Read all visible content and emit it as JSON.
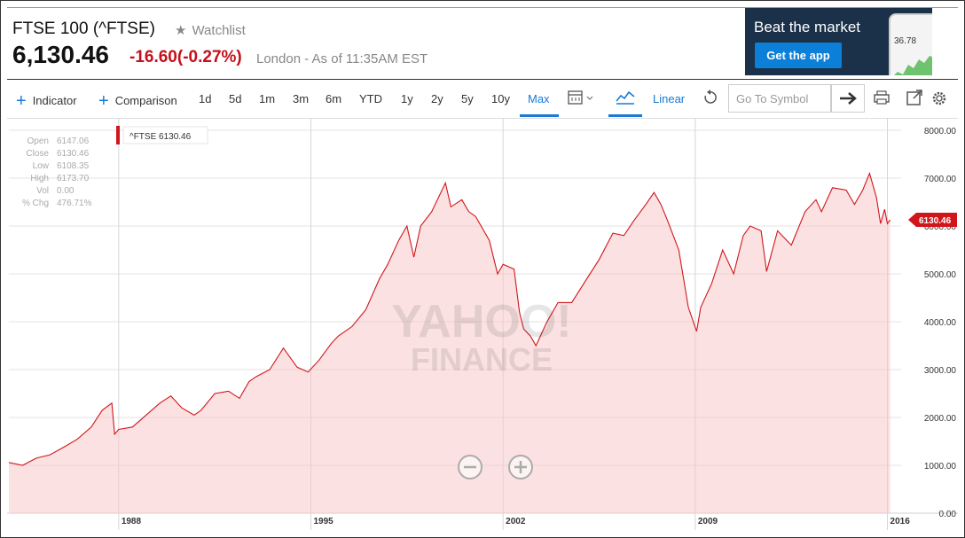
{
  "header": {
    "title": "FTSE 100 (^FTSE)",
    "watchlist_label": "Watchlist",
    "price": "6,130.46",
    "change": "-16.60",
    "change_pct": "(-0.27%)",
    "as_of": "London - As of 11:35AM EST"
  },
  "ad": {
    "title": "Beat the market",
    "button": "Get the app",
    "phone_value": "36.78"
  },
  "toolbar": {
    "indicator": "Indicator",
    "comparison": "Comparison",
    "ranges": [
      "1d",
      "5d",
      "1m",
      "3m",
      "6m",
      "YTD",
      "1y",
      "2y",
      "5y",
      "10y",
      "Max"
    ],
    "active_range": "Max",
    "scale": "Linear",
    "search_placeholder": "Go To Symbol"
  },
  "chart_data": {
    "type": "area",
    "title": "",
    "symbol_label": "^FTSE 6130.46",
    "last_value_label": "6130.46",
    "watermark_line1": "YAHOO!",
    "watermark_line2": "FINANCE",
    "xlim": [
      1984,
      2016.5
    ],
    "ylim": [
      0,
      8000
    ],
    "y_ticks": [
      "0.00",
      "1000.00",
      "2000.00",
      "3000.00",
      "4000.00",
      "5000.00",
      "6000.00",
      "7000.00",
      "8000.00"
    ],
    "x_ticks": [
      {
        "label": "1988",
        "value": 1988.0
      },
      {
        "label": "1995",
        "value": 1995.0
      },
      {
        "label": "2002",
        "value": 2002.0
      },
      {
        "label": "2009",
        "value": 2009.0
      },
      {
        "label": "2016",
        "value": 2016.0
      }
    ],
    "ohlc": [
      {
        "label": "Open",
        "value": "6147.06"
      },
      {
        "label": "Close",
        "value": "6130.46"
      },
      {
        "label": "Low",
        "value": "6108.35"
      },
      {
        "label": "High",
        "value": "6173.70"
      },
      {
        "label": "Vol",
        "value": "0.00"
      },
      {
        "label": "% Chg",
        "value": "476.71%"
      }
    ],
    "series": [
      {
        "color": "#d0161b",
        "points": [
          [
            1984.0,
            1060
          ],
          [
            1984.5,
            1000
          ],
          [
            1985.0,
            1150
          ],
          [
            1985.5,
            1220
          ],
          [
            1986.0,
            1380
          ],
          [
            1986.5,
            1550
          ],
          [
            1987.0,
            1800
          ],
          [
            1987.4,
            2150
          ],
          [
            1987.75,
            2300
          ],
          [
            1987.85,
            1650
          ],
          [
            1988.0,
            1750
          ],
          [
            1988.5,
            1800
          ],
          [
            1989.0,
            2050
          ],
          [
            1989.5,
            2300
          ],
          [
            1989.9,
            2450
          ],
          [
            1990.3,
            2200
          ],
          [
            1990.75,
            2050
          ],
          [
            1991.0,
            2150
          ],
          [
            1991.5,
            2500
          ],
          [
            1992.0,
            2550
          ],
          [
            1992.4,
            2400
          ],
          [
            1992.75,
            2750
          ],
          [
            1993.0,
            2850
          ],
          [
            1993.5,
            3000
          ],
          [
            1994.0,
            3450
          ],
          [
            1994.5,
            3050
          ],
          [
            1994.9,
            2950
          ],
          [
            1995.3,
            3200
          ],
          [
            1995.75,
            3550
          ],
          [
            1996.0,
            3700
          ],
          [
            1996.5,
            3900
          ],
          [
            1997.0,
            4250
          ],
          [
            1997.5,
            4900
          ],
          [
            1997.8,
            5200
          ],
          [
            1998.2,
            5700
          ],
          [
            1998.5,
            6000
          ],
          [
            1998.75,
            5350
          ],
          [
            1999.0,
            6000
          ],
          [
            1999.4,
            6300
          ],
          [
            1999.9,
            6900
          ],
          [
            2000.1,
            6400
          ],
          [
            2000.5,
            6550
          ],
          [
            2000.75,
            6300
          ],
          [
            2001.0,
            6200
          ],
          [
            2001.5,
            5700
          ],
          [
            2001.8,
            5000
          ],
          [
            2002.0,
            5200
          ],
          [
            2002.4,
            5100
          ],
          [
            2002.6,
            4200
          ],
          [
            2002.75,
            3850
          ],
          [
            2003.0,
            3700
          ],
          [
            2003.2,
            3500
          ],
          [
            2003.6,
            4000
          ],
          [
            2004.0,
            4400
          ],
          [
            2004.5,
            4400
          ],
          [
            2005.0,
            4850
          ],
          [
            2005.5,
            5300
          ],
          [
            2006.0,
            5850
          ],
          [
            2006.4,
            5800
          ],
          [
            2006.75,
            6100
          ],
          [
            2007.2,
            6450
          ],
          [
            2007.5,
            6700
          ],
          [
            2007.75,
            6450
          ],
          [
            2008.0,
            6100
          ],
          [
            2008.4,
            5500
          ],
          [
            2008.75,
            4300
          ],
          [
            2009.05,
            3800
          ],
          [
            2009.2,
            4300
          ],
          [
            2009.6,
            4800
          ],
          [
            2010.0,
            5500
          ],
          [
            2010.4,
            5000
          ],
          [
            2010.75,
            5800
          ],
          [
            2011.0,
            6000
          ],
          [
            2011.4,
            5900
          ],
          [
            2011.6,
            5050
          ],
          [
            2012.0,
            5900
          ],
          [
            2012.5,
            5600
          ],
          [
            2013.0,
            6300
          ],
          [
            2013.4,
            6550
          ],
          [
            2013.6,
            6300
          ],
          [
            2014.0,
            6800
          ],
          [
            2014.5,
            6750
          ],
          [
            2014.8,
            6450
          ],
          [
            2015.1,
            6750
          ],
          [
            2015.35,
            7100
          ],
          [
            2015.6,
            6600
          ],
          [
            2015.75,
            6050
          ],
          [
            2015.9,
            6350
          ],
          [
            2016.0,
            6050
          ],
          [
            2016.1,
            6130
          ]
        ]
      }
    ]
  }
}
